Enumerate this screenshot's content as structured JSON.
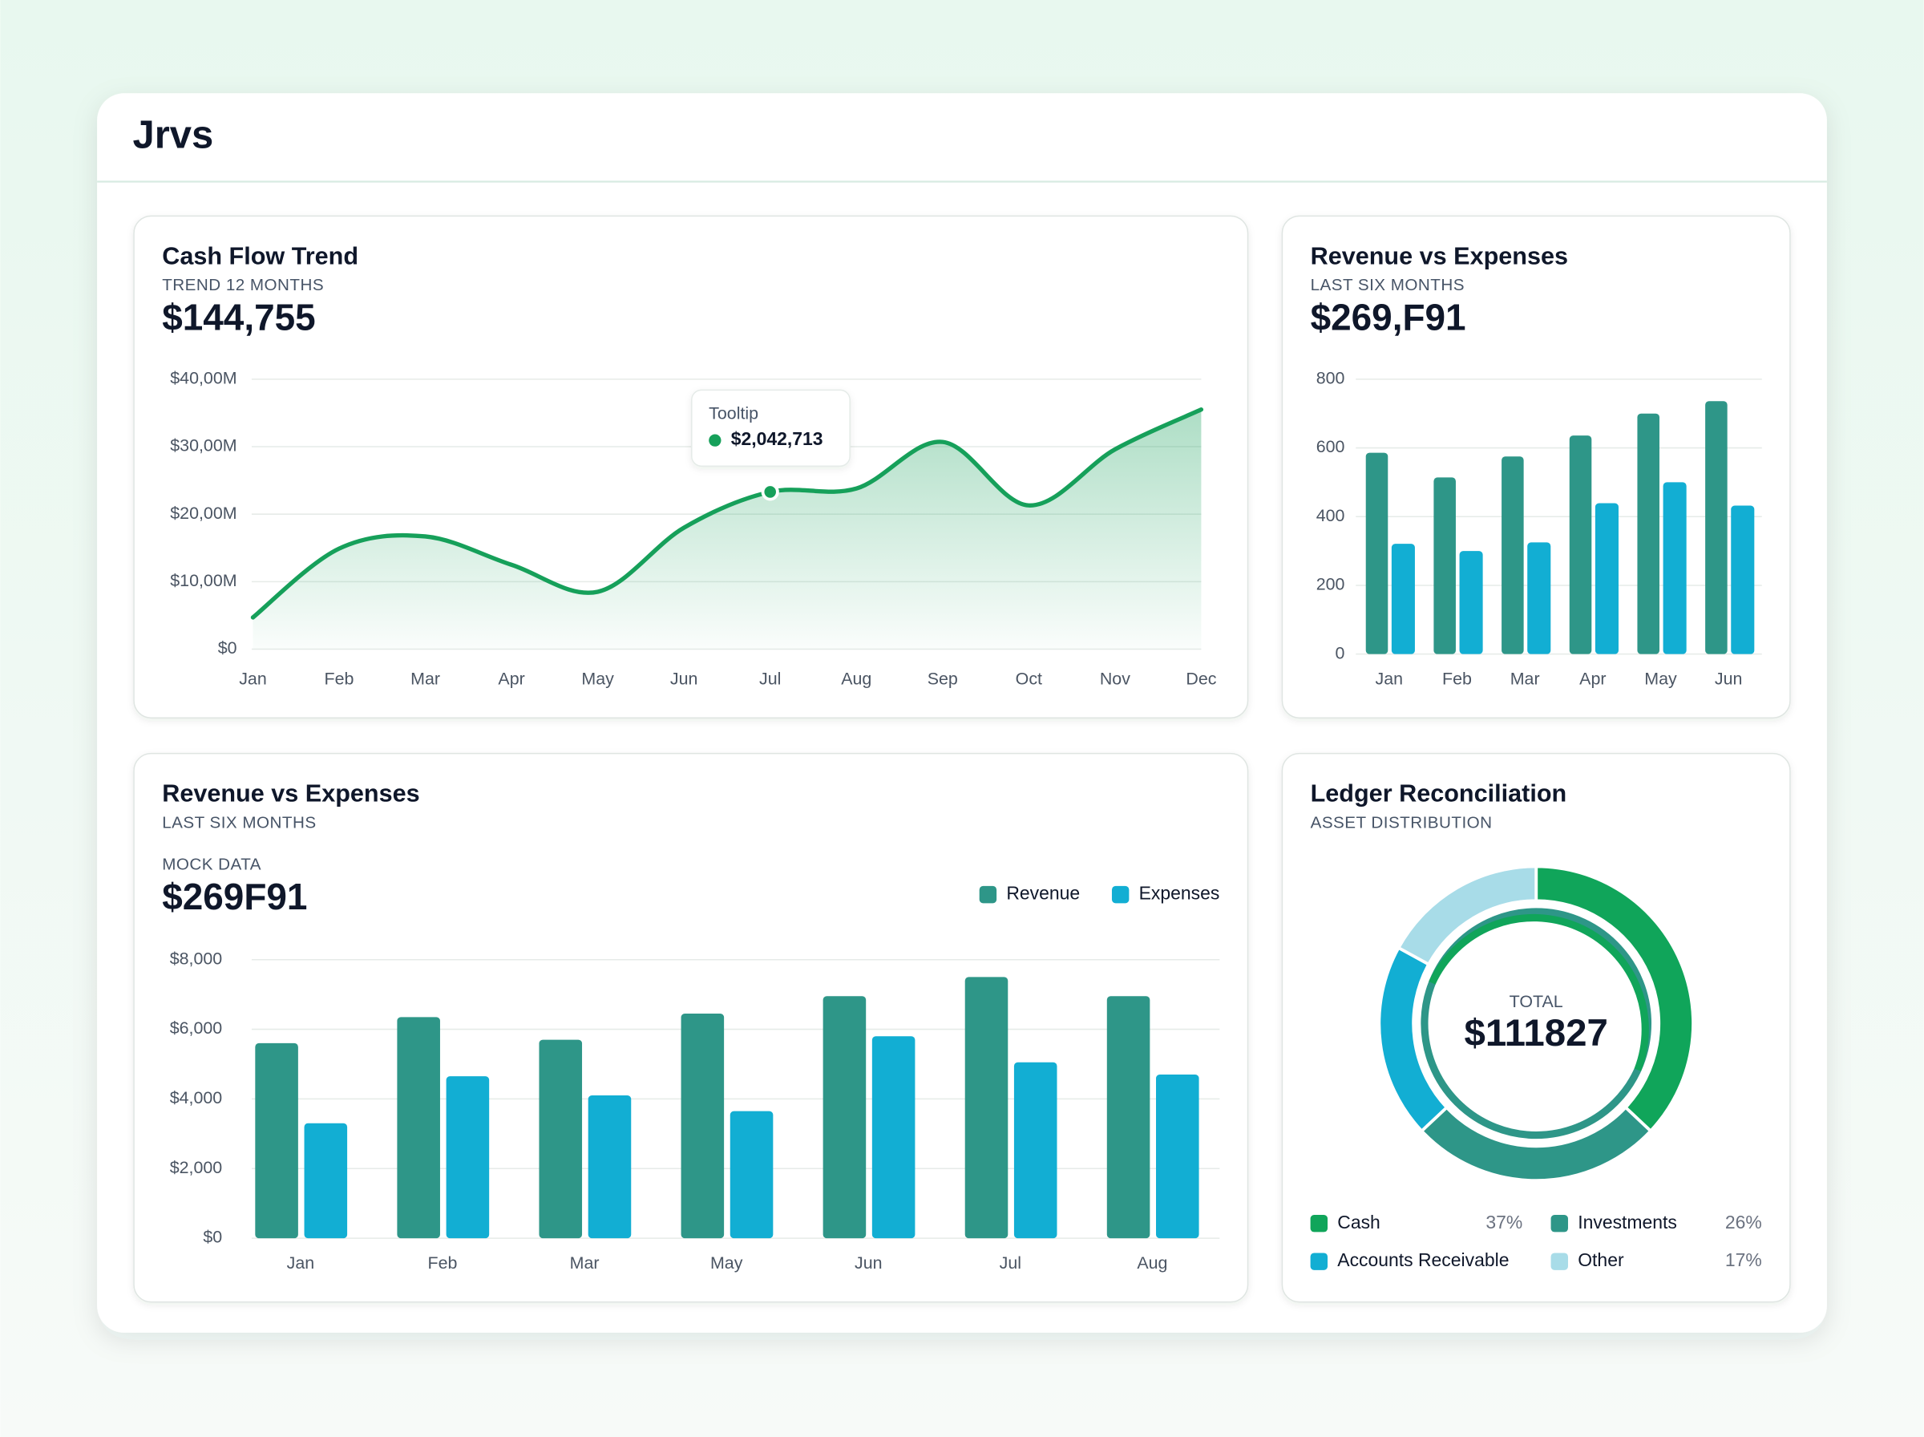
{
  "header": {
    "title": "Jrvs"
  },
  "chart_data": [
    {
      "type": "line",
      "title": "Cash Flow Trend",
      "subtitle": "TREND 12 MONTHS",
      "headline": "$144,755",
      "categories": [
        "Jan",
        "Feb",
        "Mar",
        "Apr",
        "May",
        "Jun",
        "Jul",
        "Aug",
        "Sep",
        "Oct",
        "Nov",
        "Dec"
      ],
      "values": [
        4.7,
        14.9,
        16.7,
        12.5,
        8.5,
        18,
        23.3,
        23.8,
        30.7,
        21.3,
        29.6,
        35.5
      ],
      "color": "#16a05a",
      "ylim": [
        0,
        40
      ],
      "yticks": [
        {
          "value": 0,
          "label": "$0"
        },
        {
          "value": 10,
          "label": "$10,00M"
        },
        {
          "value": 20,
          "label": "$20,00M"
        },
        {
          "value": 30,
          "label": "$30,00M"
        },
        {
          "value": 40,
          "label": "$40,00M"
        }
      ],
      "grid": true,
      "tooltip": {
        "category": "Jul",
        "title": "Tooltip",
        "text": "$2,042,713"
      }
    },
    {
      "type": "bar",
      "title": "Revenue vs Expenses",
      "subtitle": "LAST SIX MONTHS",
      "headline": "$269,F91",
      "categories": [
        "Jan",
        "Feb",
        "Mar",
        "Apr",
        "May",
        "Jun"
      ],
      "series": [
        {
          "color": "#2e9688",
          "values": [
            586,
            514,
            575,
            636,
            700,
            736
          ]
        },
        {
          "color": "#12aed3",
          "values": [
            321,
            300,
            325,
            439,
            500,
            432
          ]
        }
      ],
      "ylim": [
        0,
        800
      ],
      "yticks": [
        0,
        200,
        400,
        600,
        800
      ],
      "grid": true
    },
    {
      "type": "bar",
      "title": "Revenue vs Expenses",
      "subtitle": "LAST SIX MONTHS",
      "label": "MOCK DATA",
      "headline": "$269F91",
      "categories": [
        "Jan",
        "Feb",
        "Mar",
        "May",
        "Jun",
        "Jul",
        "Aug"
      ],
      "series": [
        {
          "name": "Revenue",
          "color": "#2e9688",
          "values": [
            5600,
            6350,
            5700,
            6450,
            6950,
            7500,
            6950
          ]
        },
        {
          "name": "Expenses",
          "color": "#12aed3",
          "values": [
            3300,
            4650,
            4100,
            3650,
            5800,
            5050,
            4700
          ]
        }
      ],
      "ylim": [
        0,
        8000
      ],
      "yticks": [
        {
          "value": 0,
          "label": "$0"
        },
        {
          "value": 2000,
          "label": "$2,000"
        },
        {
          "value": 4000,
          "label": "$4,000"
        },
        {
          "value": 6000,
          "label": "$6,000"
        },
        {
          "value": 8000,
          "label": "$8,000"
        }
      ],
      "grid": true,
      "legend": "top-right"
    },
    {
      "type": "pie",
      "donut": true,
      "title": "Ledger Reconciliation",
      "subtitle": "ASSET DISTRIBUTION",
      "center_label": "TOTAL",
      "center_value": "$111827",
      "categories": [
        "Cash",
        "Investments",
        "Accounts Receivable",
        "Other"
      ],
      "values": [
        37,
        26,
        20,
        17
      ],
      "value_labels": [
        "37%",
        "26%",
        null,
        "17%"
      ],
      "colors": [
        "#10a55a",
        "#2e9688",
        "#12aed3",
        "#a8dce8"
      ]
    }
  ]
}
